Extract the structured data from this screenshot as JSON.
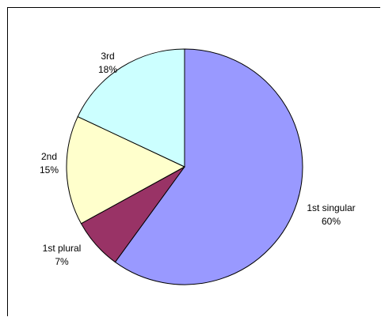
{
  "chart_data": {
    "type": "pie",
    "title": "",
    "start_angle_deg": 0,
    "direction": "clockwise",
    "slices": [
      {
        "label": "1st singular",
        "percent_label": "60%",
        "value": 60,
        "color": "#9999ff"
      },
      {
        "label": "1st plural",
        "percent_label": "7%",
        "value": 7,
        "color": "#993366"
      },
      {
        "label": "2nd",
        "percent_label": "15%",
        "value": 15,
        "color": "#ffffcc"
      },
      {
        "label": "3rd",
        "percent_label": "18%",
        "value": 18,
        "color": "#ccffff"
      }
    ],
    "legend": "none",
    "slice_outline_color": "#000000"
  }
}
